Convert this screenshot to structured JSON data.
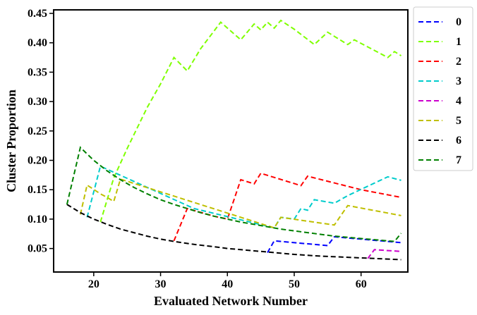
{
  "chart_data": {
    "type": "line",
    "xlabel": "Evaluated Network Number",
    "ylabel": "Cluster Proportion",
    "xlim": [
      14,
      67
    ],
    "ylim": [
      0.01,
      0.456
    ],
    "xticks": [
      20,
      30,
      40,
      50,
      60
    ],
    "xtick_labels": [
      "20",
      "30",
      "40",
      "50",
      "60"
    ],
    "yticks": [
      0.05,
      0.1,
      0.15,
      0.2,
      0.25,
      0.3,
      0.35,
      0.4,
      0.45
    ],
    "ytick_labels": [
      "0.05",
      "0.10",
      "0.15",
      "0.20",
      "0.25",
      "0.30",
      "0.35",
      "0.40",
      "0.45"
    ],
    "line_style": "dashed",
    "legend_position": "outside right, top",
    "grid": false,
    "series": [
      {
        "name": "0",
        "color": "#0000ff",
        "points": [
          [
            46,
            0.043
          ],
          [
            47,
            0.063
          ],
          [
            55,
            0.055
          ],
          [
            56,
            0.07
          ],
          [
            66,
            0.06
          ]
        ]
      },
      {
        "name": "1",
        "color": "#7fff00",
        "points": [
          [
            21,
            0.095
          ],
          [
            23,
            0.17
          ],
          [
            25,
            0.22
          ],
          [
            28,
            0.29
          ],
          [
            30,
            0.33
          ],
          [
            32,
            0.375
          ],
          [
            34,
            0.352
          ],
          [
            36,
            0.39
          ],
          [
            39,
            0.435
          ],
          [
            42,
            0.405
          ],
          [
            44,
            0.432
          ],
          [
            45,
            0.422
          ],
          [
            46,
            0.435
          ],
          [
            47,
            0.425
          ],
          [
            48,
            0.438
          ],
          [
            50,
            0.423
          ],
          [
            53,
            0.397
          ],
          [
            55,
            0.418
          ],
          [
            58,
            0.397
          ],
          [
            59,
            0.405
          ],
          [
            64,
            0.375
          ],
          [
            65,
            0.385
          ],
          [
            66,
            0.378
          ]
        ]
      },
      {
        "name": "2",
        "color": "#ff0000",
        "points": [
          [
            32,
            0.063
          ],
          [
            34,
            0.118
          ],
          [
            38,
            0.105
          ],
          [
            40,
            0.1
          ],
          [
            42,
            0.167
          ],
          [
            44,
            0.16
          ],
          [
            45,
            0.178
          ],
          [
            51,
            0.157
          ],
          [
            52,
            0.173
          ],
          [
            60,
            0.15
          ],
          [
            66,
            0.137
          ]
        ]
      },
      {
        "name": "3",
        "color": "#00cccc",
        "points": [
          [
            19,
            0.103
          ],
          [
            21,
            0.19
          ],
          [
            35,
            0.118
          ],
          [
            47,
            0.085
          ],
          [
            48,
            0.103
          ],
          [
            50,
            0.1
          ],
          [
            51,
            0.118
          ],
          [
            52,
            0.115
          ],
          [
            53,
            0.133
          ],
          [
            56,
            0.127
          ],
          [
            58,
            0.14
          ],
          [
            64,
            0.172
          ],
          [
            66,
            0.166
          ]
        ]
      },
      {
        "name": "4",
        "color": "#cc00cc",
        "points": [
          [
            61,
            0.033
          ],
          [
            62,
            0.048
          ],
          [
            66,
            0.045
          ]
        ]
      },
      {
        "name": "5",
        "color": "#bfbf00",
        "points": [
          [
            18,
            0.108
          ],
          [
            19,
            0.158
          ],
          [
            21,
            0.143
          ],
          [
            22,
            0.137
          ],
          [
            23,
            0.13
          ],
          [
            24,
            0.168
          ],
          [
            47,
            0.085
          ],
          [
            48,
            0.103
          ],
          [
            56,
            0.09
          ],
          [
            58,
            0.123
          ],
          [
            66,
            0.106
          ]
        ]
      },
      {
        "name": "6",
        "color": "#000000",
        "points": [
          [
            16,
            0.125
          ],
          [
            18,
            0.111
          ],
          [
            20,
            0.1
          ],
          [
            22,
            0.091
          ],
          [
            24,
            0.083
          ],
          [
            26,
            0.077
          ],
          [
            28,
            0.071
          ],
          [
            30,
            0.066
          ],
          [
            32,
            0.062
          ],
          [
            35,
            0.057
          ],
          [
            38,
            0.053
          ],
          [
            40,
            0.05
          ],
          [
            43,
            0.047
          ],
          [
            46,
            0.044
          ],
          [
            50,
            0.04
          ],
          [
            54,
            0.037
          ],
          [
            58,
            0.035
          ],
          [
            62,
            0.033
          ],
          [
            66,
            0.031
          ]
        ]
      },
      {
        "name": "7",
        "color": "#008000",
        "points": [
          [
            16,
            0.125
          ],
          [
            18,
            0.222
          ],
          [
            20,
            0.2
          ],
          [
            22,
            0.182
          ],
          [
            24,
            0.167
          ],
          [
            26,
            0.154
          ],
          [
            28,
            0.143
          ],
          [
            30,
            0.133
          ],
          [
            32,
            0.125
          ],
          [
            34,
            0.118
          ],
          [
            36,
            0.111
          ],
          [
            38,
            0.105
          ],
          [
            40,
            0.1
          ],
          [
            42,
            0.095
          ],
          [
            44,
            0.091
          ],
          [
            46,
            0.087
          ],
          [
            48,
            0.083
          ],
          [
            50,
            0.08
          ],
          [
            52,
            0.077
          ],
          [
            54,
            0.074
          ],
          [
            56,
            0.071
          ],
          [
            58,
            0.069
          ],
          [
            60,
            0.067
          ],
          [
            62,
            0.065
          ],
          [
            64,
            0.063
          ],
          [
            65,
            0.062
          ],
          [
            66,
            0.076
          ]
        ]
      }
    ]
  }
}
